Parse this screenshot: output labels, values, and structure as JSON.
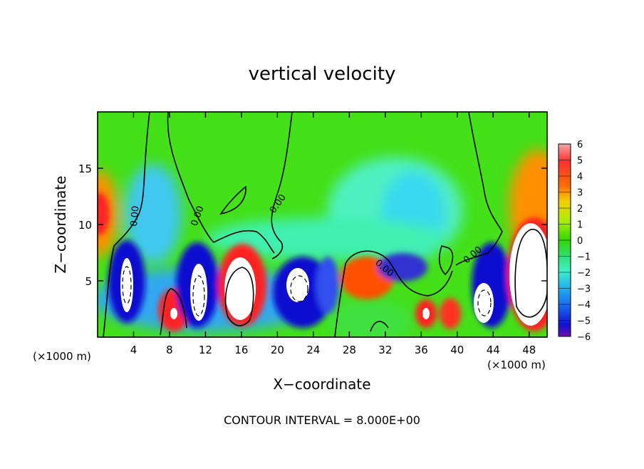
{
  "chart_data": {
    "type": "heatmap",
    "title": "vertical velocity",
    "xlabel": "X−coordinate",
    "ylabel": "Z−coordinate",
    "x_unit_left": "(×1000 m)",
    "x_unit_right": "(×1000 m)",
    "footer": "CONTOUR INTERVAL = 8.000E+00",
    "xlim": [
      0,
      50
    ],
    "ylim": [
      0,
      20
    ],
    "x_ticks": [
      4,
      8,
      12,
      16,
      20,
      24,
      28,
      32,
      36,
      40,
      44,
      48
    ],
    "y_ticks": [
      5,
      10,
      15
    ],
    "x_tick_labels": [
      "4",
      "8",
      "12",
      "16",
      "20",
      "24",
      "28",
      "32",
      "36",
      "40",
      "44",
      "48"
    ],
    "y_tick_labels": [
      "5",
      "10",
      "15"
    ],
    "color_scale": {
      "min": -6,
      "max": 6,
      "tick_labels": [
        "6",
        "5",
        "4",
        "3",
        "2",
        "1",
        "0",
        "−1",
        "−2",
        "−3",
        "−4",
        "−5",
        "−6"
      ],
      "colors": [
        "#f4a8a8",
        "#ff3030",
        "#ff7000",
        "#f2d000",
        "#a8f000",
        "#30d800",
        "#30e070",
        "#40f0c8",
        "#20b8f0",
        "#1868f0",
        "#1010d0",
        "#7010b0"
      ]
    },
    "contour_labels": [
      "0.00",
      "0.00",
      "0.00",
      "0.00",
      "0.00"
    ],
    "features": [
      {
        "kind": "updraft",
        "x": 16.0,
        "z": 4.0,
        "w": 12
      },
      {
        "kind": "updraft",
        "x": 48.5,
        "z": 6.0,
        "w": 12
      },
      {
        "kind": "updraft",
        "x": 29.5,
        "z": 5.5,
        "w": 4.5
      },
      {
        "kind": "updraft",
        "x": 0.5,
        "z": 11.0,
        "w": 5
      },
      {
        "kind": "updraft",
        "x": 8.8,
        "z": 2.0,
        "w": 5
      },
      {
        "kind": "updraft",
        "x": 36.5,
        "z": 2.0,
        "w": 8
      },
      {
        "kind": "updraft",
        "x": 39.2,
        "z": 2.1,
        "w": 4.8
      },
      {
        "kind": "downdraft",
        "x": 3.2,
        "z": 5.0,
        "w": -9
      },
      {
        "kind": "downdraft",
        "x": 10.8,
        "z": 4.0,
        "w": -10
      },
      {
        "kind": "downdraft",
        "x": 22.5,
        "z": 4.5,
        "w": -10
      },
      {
        "kind": "downdraft",
        "x": 42.8,
        "z": 3.5,
        "w": -10
      },
      {
        "kind": "downdraft",
        "x": 34.0,
        "z": 6.5,
        "w": -5
      }
    ]
  }
}
